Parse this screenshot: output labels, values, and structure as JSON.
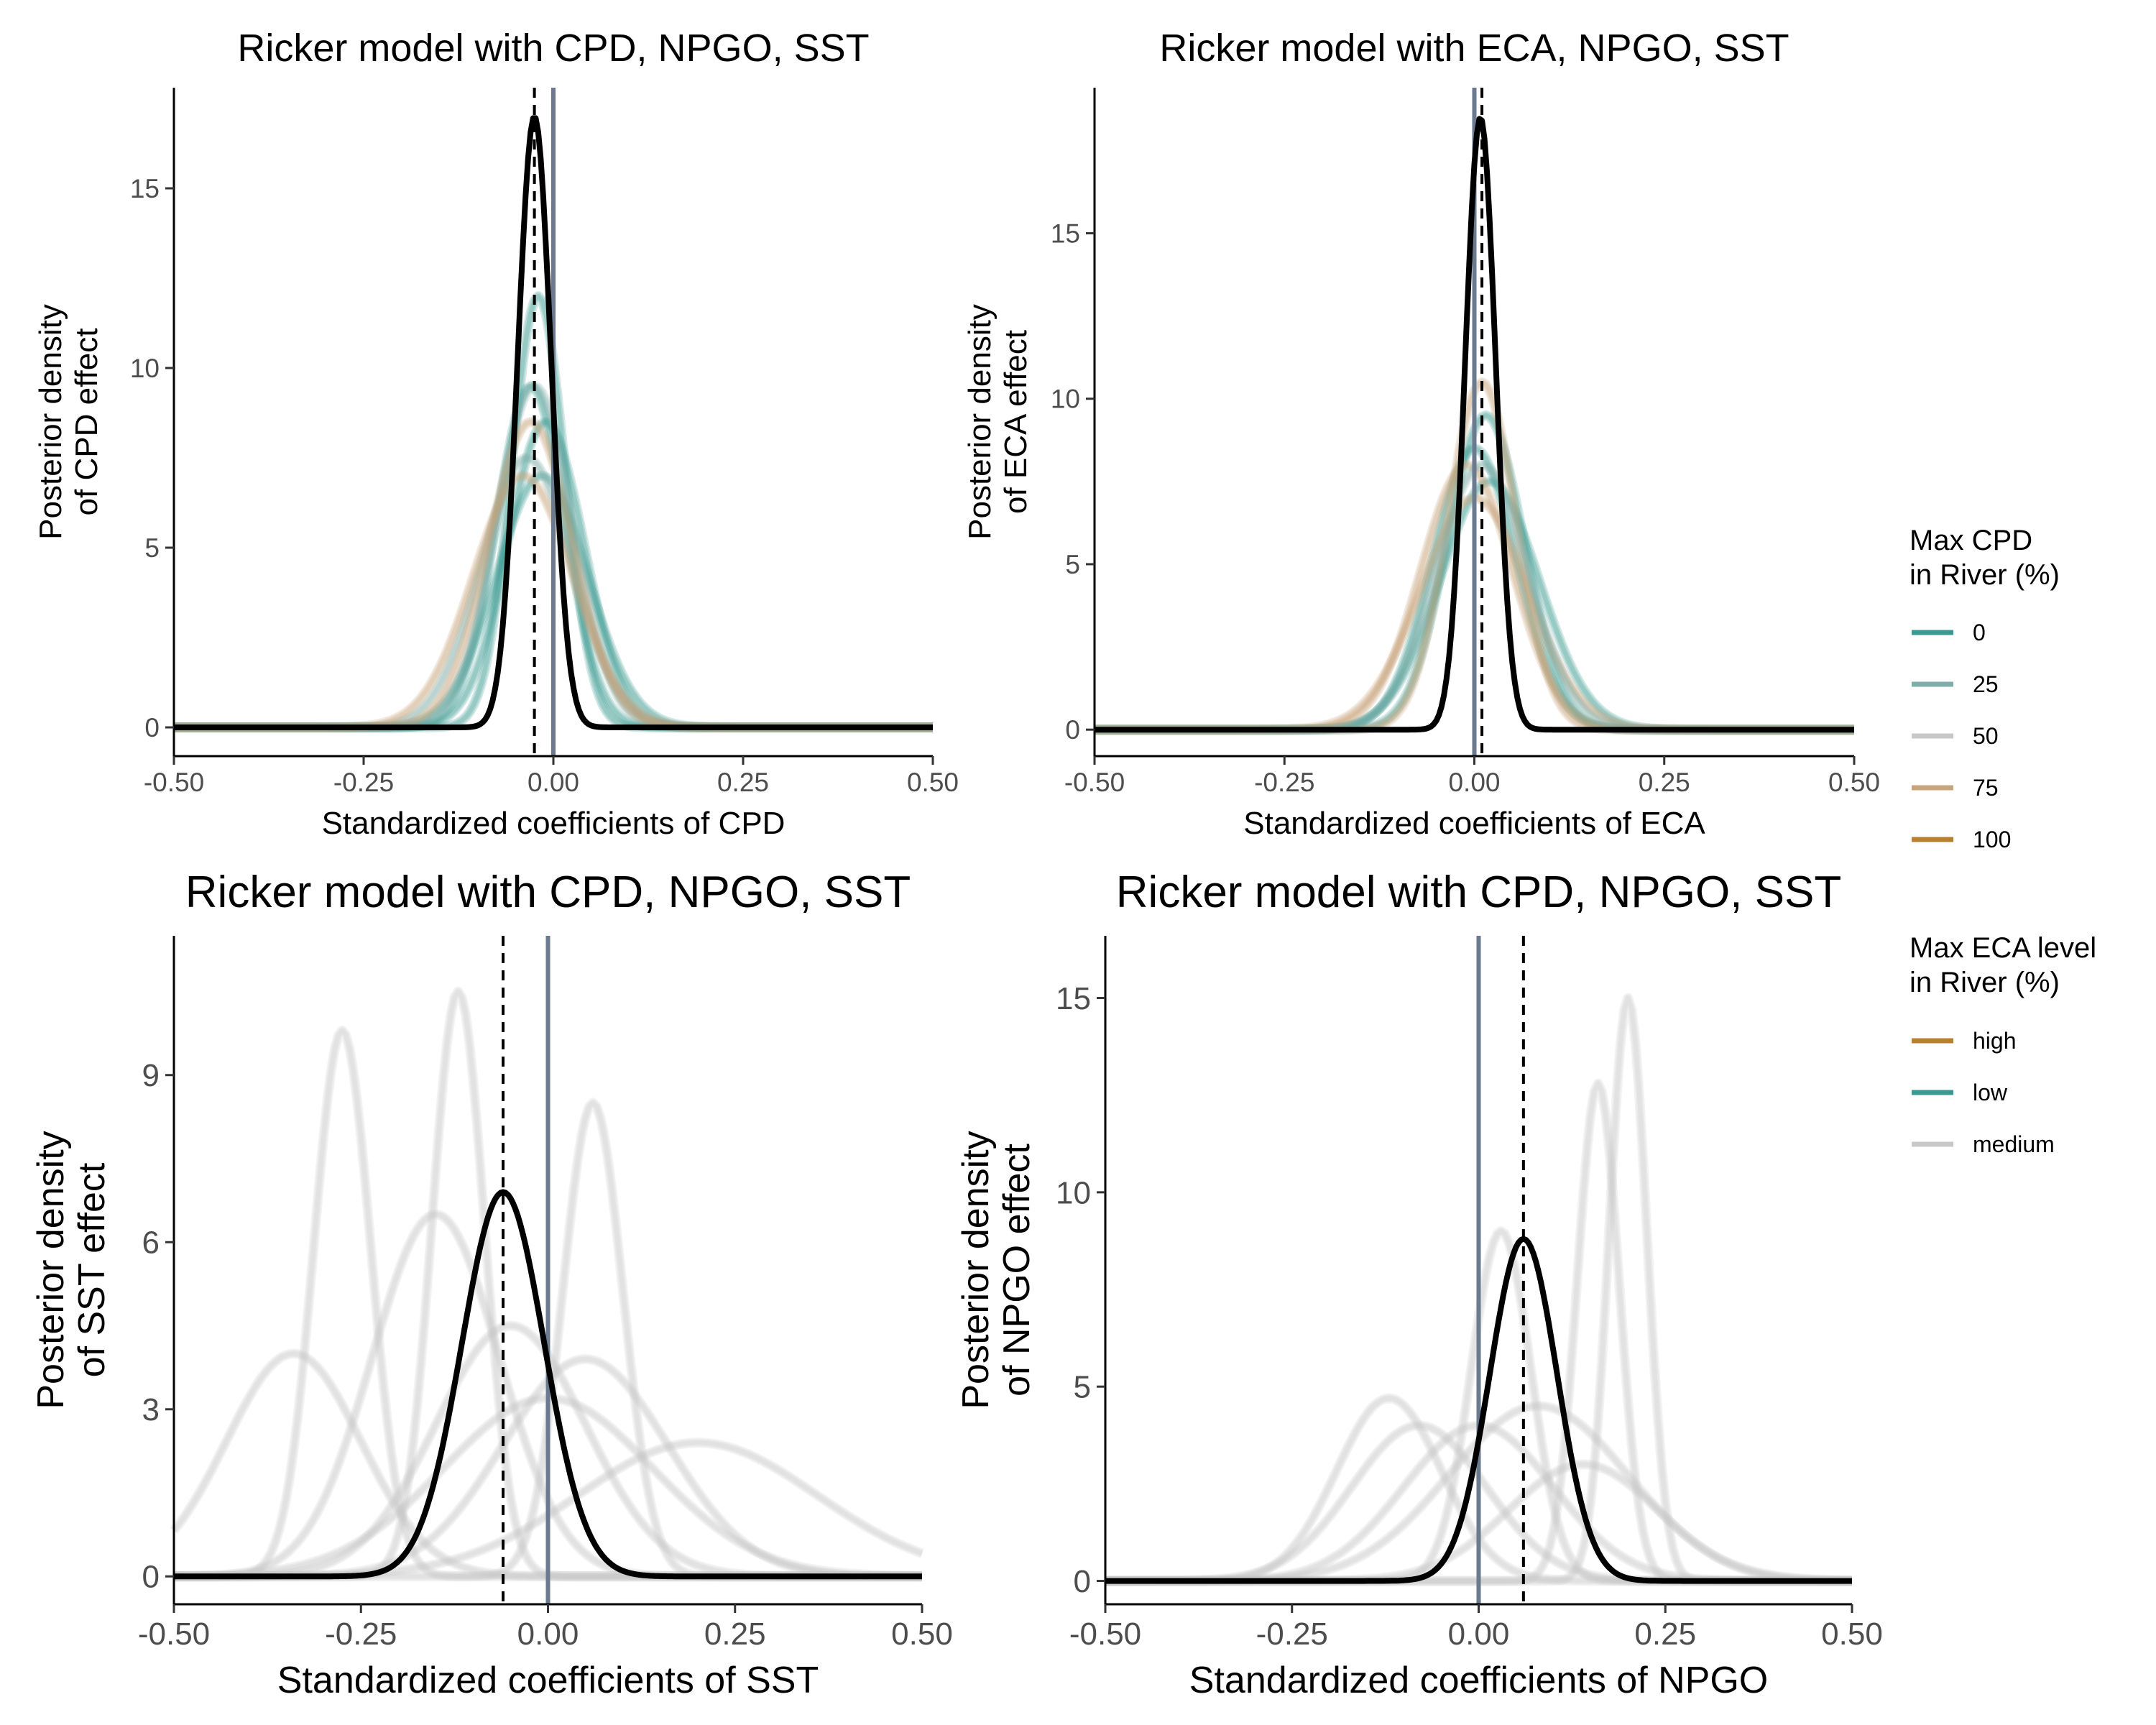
{
  "legend_cpd": {
    "title": "Max CPD\nin River (%)",
    "items": [
      {
        "label": "0",
        "color": "#3A9A92"
      },
      {
        "label": "25",
        "color": "#7FADA8"
      },
      {
        "label": "50",
        "color": "#C8C8C8"
      },
      {
        "label": "75",
        "color": "#C8A47C"
      },
      {
        "label": "100",
        "color": "#B8802E"
      }
    ]
  },
  "legend_eca": {
    "title": "Max ECA level\nin River (%)",
    "items": [
      {
        "label": "high",
        "color": "#B8802E"
      },
      {
        "label": "low",
        "color": "#3A9A92"
      },
      {
        "label": "medium",
        "color": "#C8C8C8"
      }
    ]
  },
  "colors": {
    "zero_line": "#6B7A8F",
    "mean_line": "#000000",
    "posterior": "#000000",
    "faint_gray": "#C8C8C8"
  },
  "chart_data": [
    {
      "type": "line",
      "title": "Ricker model with CPD, NPGO, SST",
      "xlabel": "Standardized coefficients of CPD",
      "ylabel": "Posterior density\nof CPD effect",
      "xlim": [
        -0.5,
        0.5
      ],
      "ylim": [
        -0.8,
        17.8
      ],
      "xticks": [
        "-0.50",
        "-0.25",
        "0.00",
        "0.25",
        "0.50"
      ],
      "yticks": [
        0,
        5,
        10,
        15
      ],
      "zero_line_x": 0.0,
      "mean_line_x": -0.025,
      "posterior": {
        "center": -0.025,
        "sigma": 0.022,
        "peak": 17.0
      },
      "background_groups": [
        {
          "color": "#3A9A92",
          "curves": [
            [
              -0.02,
              0.035,
              12.0
            ],
            [
              -0.01,
              0.05,
              8.5
            ],
            [
              -0.03,
              0.045,
              9.5
            ],
            [
              -0.015,
              0.06,
              7.0
            ]
          ]
        },
        {
          "color": "#7FADA8",
          "curves": [
            [
              -0.025,
              0.05,
              9.5
            ],
            [
              -0.035,
              0.06,
              7.5
            ]
          ]
        },
        {
          "color": "#C8A47C",
          "curves": [
            [
              -0.03,
              0.055,
              8.5
            ],
            [
              -0.04,
              0.065,
              7.0
            ]
          ]
        }
      ]
    },
    {
      "type": "line",
      "title": "Ricker model with ECA, NPGO, SST",
      "xlabel": "Standardized coefficients of ECA",
      "ylabel": "Posterior density\nof ECA effect",
      "xlim": [
        -0.5,
        0.5
      ],
      "ylim": [
        -0.8,
        19.4
      ],
      "xticks": [
        "-0.50",
        "-0.25",
        "0.00",
        "0.25",
        "0.50"
      ],
      "yticks": [
        0,
        5,
        10,
        15
      ],
      "zero_line_x": 0.0,
      "mean_line_x": 0.01,
      "posterior": {
        "center": 0.008,
        "sigma": 0.02,
        "peak": 18.5
      },
      "background_groups": [
        {
          "color": "#3A9A92",
          "curves": [
            [
              0.015,
              0.05,
              9.5
            ],
            [
              0.02,
              0.065,
              7.5
            ],
            [
              0.0,
              0.055,
              8.5
            ]
          ]
        },
        {
          "color": "#C8A47C",
          "curves": [
            [
              0.01,
              0.045,
              10.5
            ],
            [
              0.0,
              0.07,
              7.0
            ],
            [
              -0.01,
              0.06,
              8.0
            ]
          ]
        },
        {
          "color": "#7FADA8",
          "curves": [
            [
              0.01,
              0.06,
              8.0
            ]
          ]
        }
      ]
    },
    {
      "type": "line",
      "title": "Ricker model with CPD, NPGO, SST",
      "xlabel": "Standardized coefficients of SST",
      "ylabel": "Posterior density\nof SST effect",
      "xlim": [
        -0.5,
        0.5
      ],
      "ylim": [
        -0.5,
        11.5
      ],
      "xticks": [
        "-0.50",
        "-0.25",
        "0.00",
        "0.25",
        "0.50"
      ],
      "yticks": [
        0,
        3,
        6,
        9
      ],
      "zero_line_x": 0.0,
      "mean_line_x": -0.06,
      "posterior": {
        "center": -0.06,
        "sigma": 0.055,
        "peak": 6.9
      },
      "background_groups": [
        {
          "color": "#C8C8C8",
          "curves": [
            [
              -0.275,
              0.038,
              9.8
            ],
            [
              -0.12,
              0.035,
              10.5
            ],
            [
              0.06,
              0.04,
              8.5
            ],
            [
              -0.34,
              0.09,
              4.0
            ],
            [
              -0.15,
              0.085,
              6.5
            ],
            [
              0.05,
              0.11,
              3.9
            ],
            [
              0.2,
              0.16,
              2.4
            ],
            [
              -0.05,
              0.1,
              4.5
            ],
            [
              0.0,
              0.14,
              3.2
            ]
          ]
        }
      ]
    },
    {
      "type": "line",
      "title": "Ricker model with CPD, NPGO, SST",
      "xlabel": "Standardized coefficients of NPGO",
      "ylabel": "Posterior density\nof NPGO effect",
      "xlim": [
        -0.5,
        0.5
      ],
      "ylim": [
        -0.6,
        16.6
      ],
      "xticks": [
        "-0.50",
        "-0.25",
        "0.00",
        "0.25",
        "0.50"
      ],
      "yticks": [
        0,
        5,
        10,
        15
      ],
      "zero_line_x": 0.0,
      "mean_line_x": 0.06,
      "posterior": {
        "center": 0.06,
        "sigma": 0.045,
        "peak": 8.8
      },
      "background_groups": [
        {
          "color": "#C8C8C8",
          "curves": [
            [
              0.03,
              0.04,
              9.0
            ],
            [
              0.16,
              0.028,
              12.8
            ],
            [
              0.2,
              0.025,
              15.0
            ],
            [
              -0.12,
              0.07,
              4.7
            ],
            [
              -0.08,
              0.09,
              4.0
            ],
            [
              0.08,
              0.12,
              4.5
            ],
            [
              0.14,
              0.1,
              3.0
            ],
            [
              0.0,
              0.1,
              4.0
            ]
          ]
        }
      ]
    }
  ]
}
